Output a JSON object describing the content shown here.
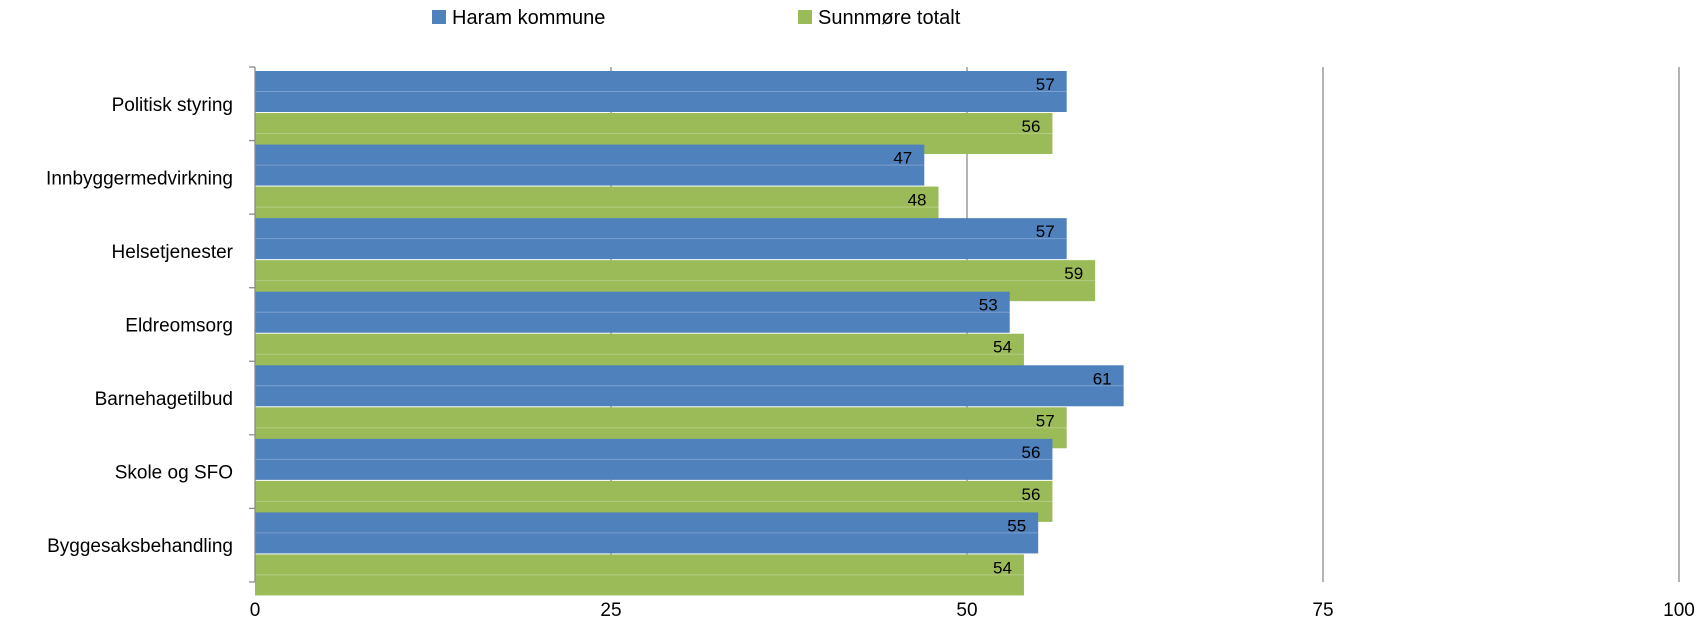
{
  "chart_data": {
    "type": "bar",
    "orientation": "horizontal",
    "categories": [
      "Politisk styring",
      "Innbyggermedvirkning",
      "Helsetjenester",
      "Eldreomsorg",
      "Barnehagetilbud",
      "Skole og SFO",
      "Byggesaksbehandling"
    ],
    "series": [
      {
        "name": "Haram kommune",
        "color": "#4f81bd",
        "values": [
          57,
          47,
          57,
          53,
          61,
          56,
          55
        ]
      },
      {
        "name": "Sunnmøre totalt",
        "color": "#9bbb59",
        "values": [
          56,
          48,
          59,
          54,
          57,
          56,
          54
        ]
      }
    ],
    "xlim": [
      0,
      100
    ],
    "xticks": [
      0,
      25,
      50,
      75,
      100
    ],
    "grid": "vertical",
    "legend_position": "top-center"
  }
}
